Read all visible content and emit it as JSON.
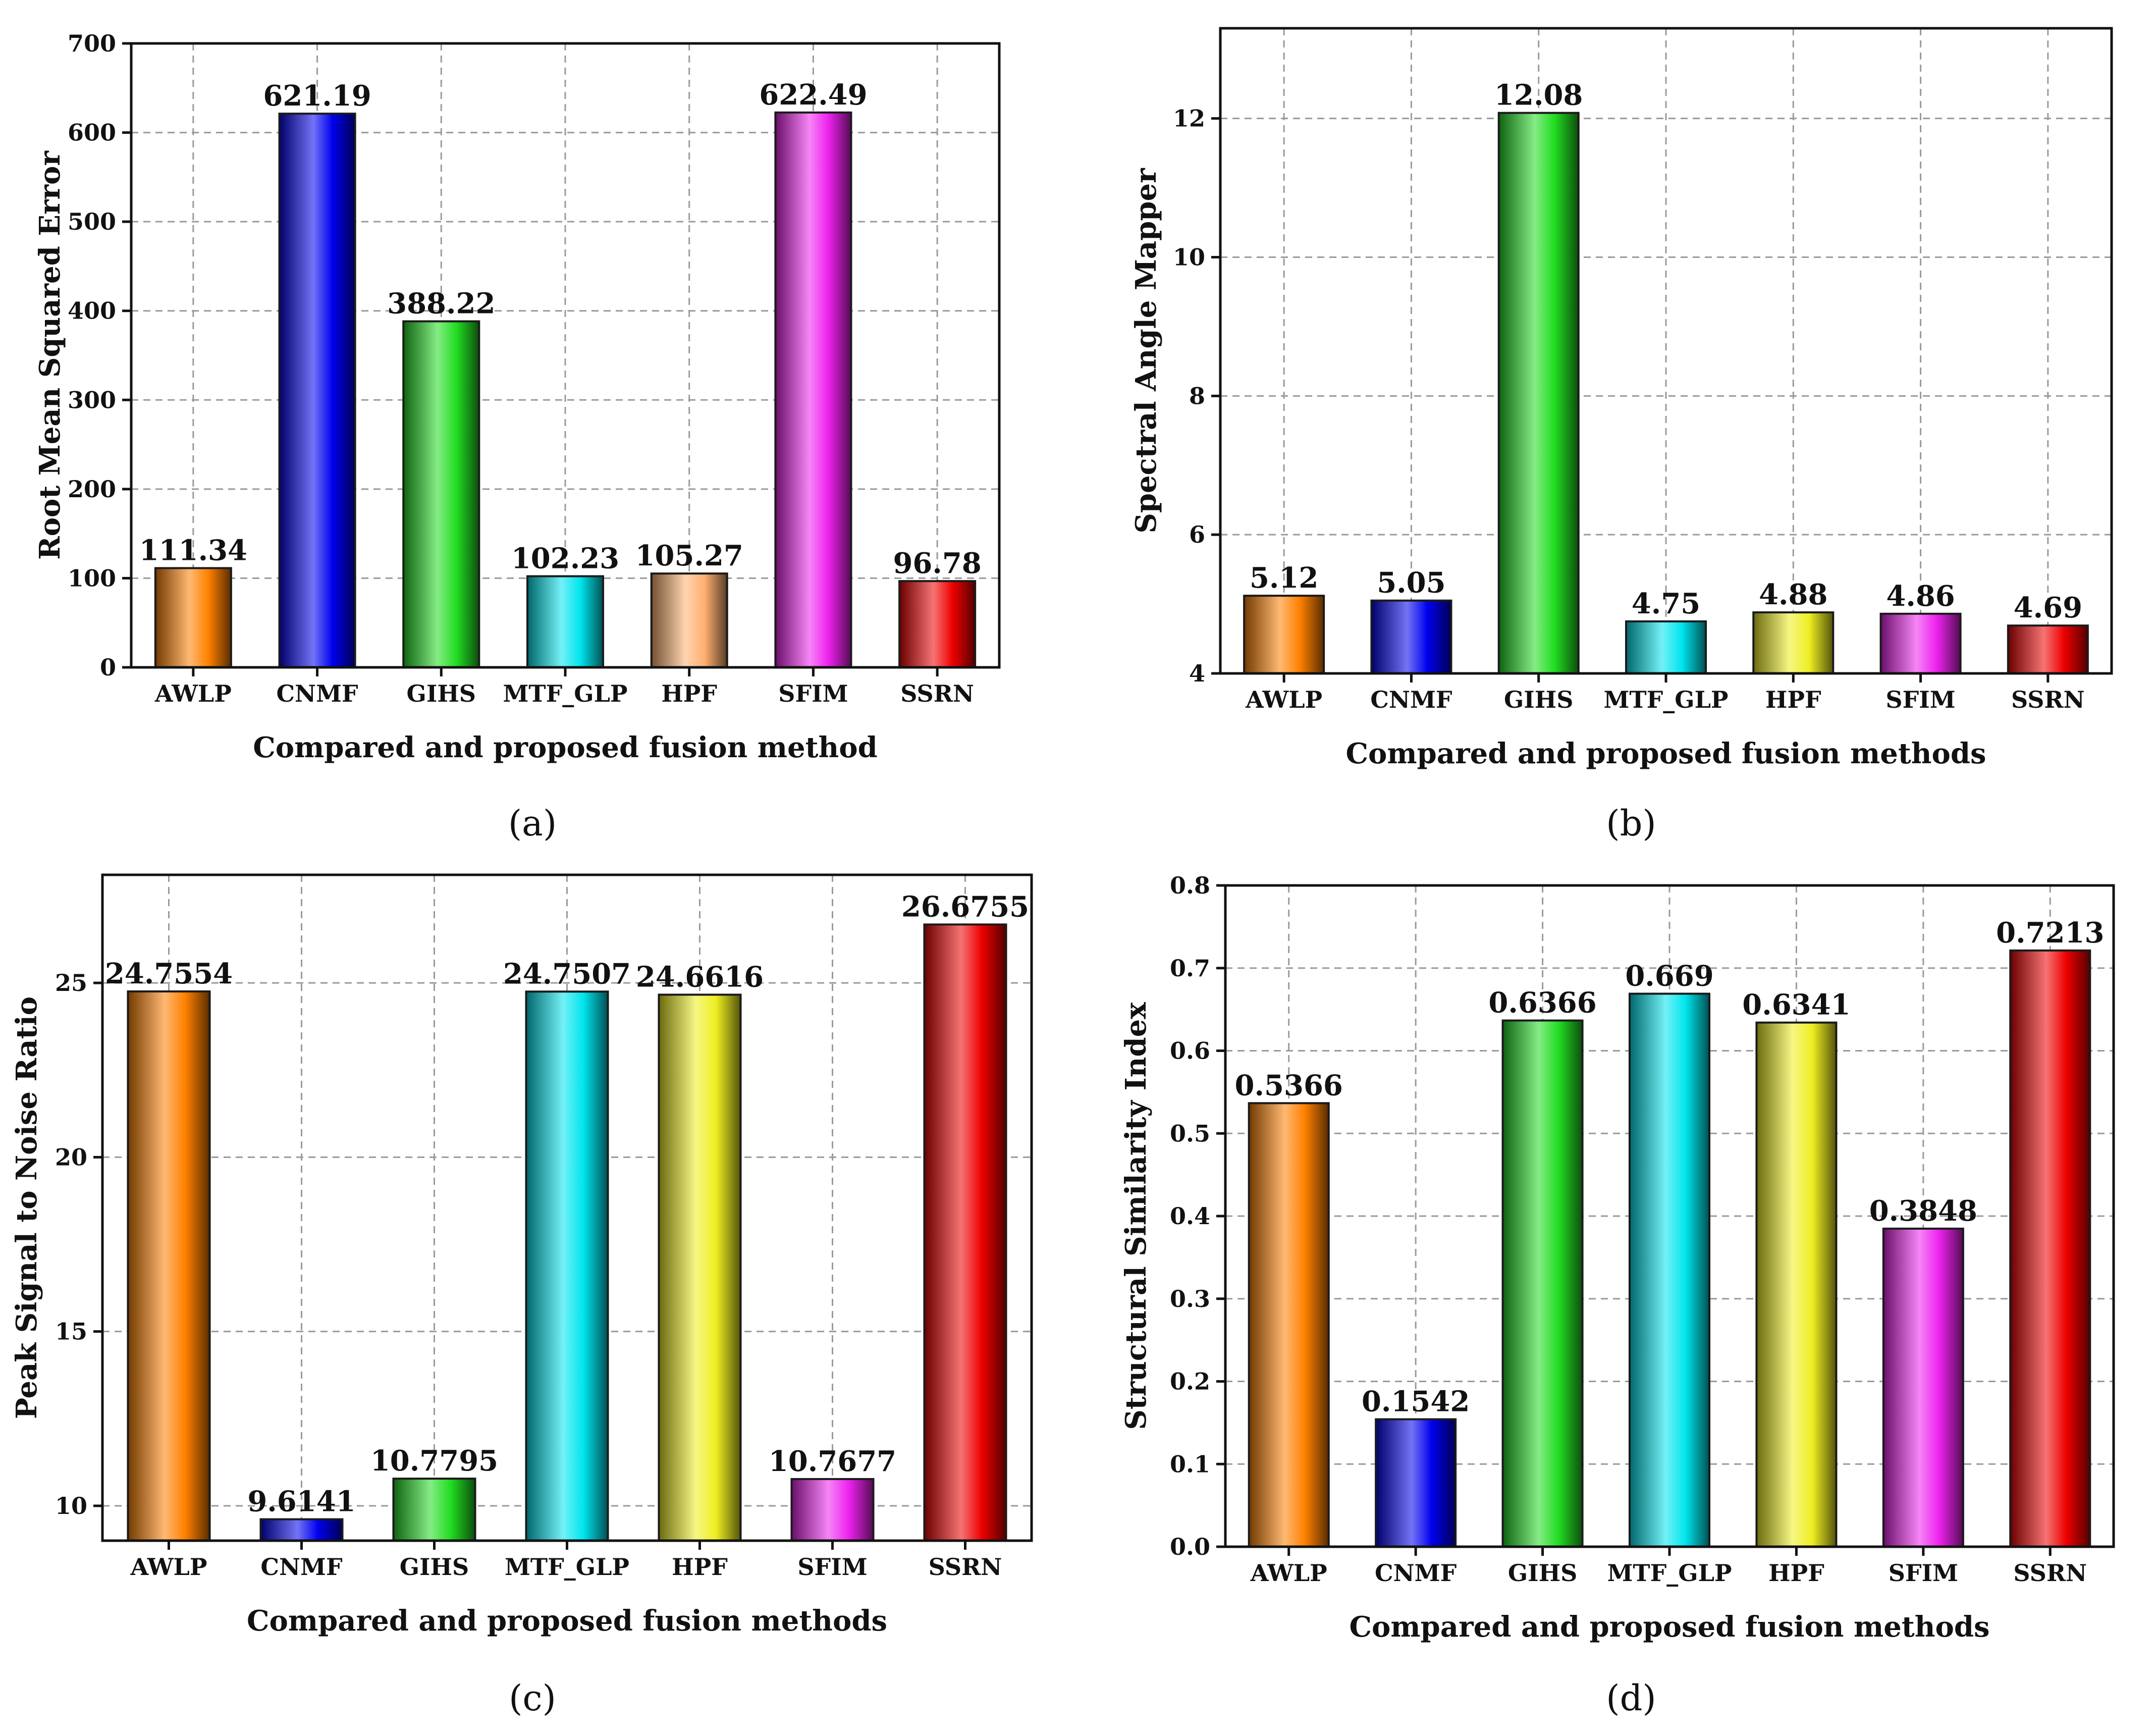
{
  "colors": {
    "AWLP": "#ff8000",
    "CNMF": "#0000ee",
    "GIHS": "#22dd22",
    "MTF_GLP": "#00e5ee",
    "HPF": "#eeee22",
    "HPF_a": "#ffb070",
    "SFIM": "#ee22ee",
    "SSRN": "#ee0000"
  },
  "chart_data": [
    {
      "type": "bar",
      "panel_label": "(a)",
      "categories": [
        "AWLP",
        "CNMF",
        "GIHS",
        "MTF_GLP",
        "HPF",
        "SFIM",
        "SSRN"
      ],
      "values": [
        111.34,
        621.19,
        388.22,
        102.23,
        105.27,
        622.49,
        96.78
      ],
      "value_labels": [
        "111.34",
        "621.19",
        "388.22",
        "102.23",
        "105.27",
        "622.49",
        "96.78"
      ],
      "ylabel": "Root Mean Squared Error",
      "xlabel": "Compared and proposed fusion method",
      "ylim": [
        0,
        700
      ],
      "yticks": [
        "0",
        "100",
        "200",
        "300",
        "400",
        "500",
        "600",
        "700"
      ],
      "grid": true
    },
    {
      "type": "bar",
      "panel_label": "(b)",
      "categories": [
        "AWLP",
        "CNMF",
        "GIHS",
        "MTF_GLP",
        "HPF",
        "SFIM",
        "SSRN"
      ],
      "values": [
        5.12,
        5.05,
        12.08,
        4.75,
        4.88,
        4.86,
        4.69
      ],
      "value_labels": [
        "5.12",
        "5.05",
        "12.08",
        "4.75",
        "4.88",
        "4.86",
        "4.69"
      ],
      "ylabel": "Spectral Angle Mapper",
      "xlabel": "Compared and proposed fusion methods",
      "ylim": [
        4,
        13.3
      ],
      "yticks": [
        "4",
        "6",
        "8",
        "10",
        "12"
      ],
      "grid": true
    },
    {
      "type": "bar",
      "panel_label": "(c)",
      "categories": [
        "AWLP",
        "CNMF",
        "GIHS",
        "MTF_GLP",
        "HPF",
        "SFIM",
        "SSRN"
      ],
      "values": [
        24.7554,
        9.6141,
        10.7795,
        24.7507,
        24.6616,
        10.7677,
        26.6755
      ],
      "value_labels": [
        "24.7554",
        "9.6141",
        "10.7795",
        "24.7507",
        "24.6616",
        "10.7677",
        "26.6755"
      ],
      "ylabel": "Peak Signal to Noise Ratio",
      "xlabel": "Compared and proposed fusion methods",
      "ylim": [
        9,
        28.1
      ],
      "yticks": [
        "10",
        "15",
        "20",
        "25"
      ],
      "grid": true
    },
    {
      "type": "bar",
      "panel_label": "(d)",
      "categories": [
        "AWLP",
        "CNMF",
        "GIHS",
        "MTF_GLP",
        "HPF",
        "SFIM",
        "SSRN"
      ],
      "values": [
        0.5366,
        0.1542,
        0.6366,
        0.669,
        0.6341,
        0.3848,
        0.7213
      ],
      "value_labels": [
        "0.5366",
        "0.1542",
        "0.6366",
        "0.669",
        "0.6341",
        "0.3848",
        "0.7213"
      ],
      "ylabel": "Structural Similarity Index",
      "xlabel": "Compared and proposed fusion methods",
      "ylim": [
        0,
        0.8
      ],
      "yticks": [
        "0.0",
        "0.1",
        "0.2",
        "0.3",
        "0.4",
        "0.5",
        "0.6",
        "0.7",
        "0.8"
      ],
      "grid": true
    }
  ]
}
